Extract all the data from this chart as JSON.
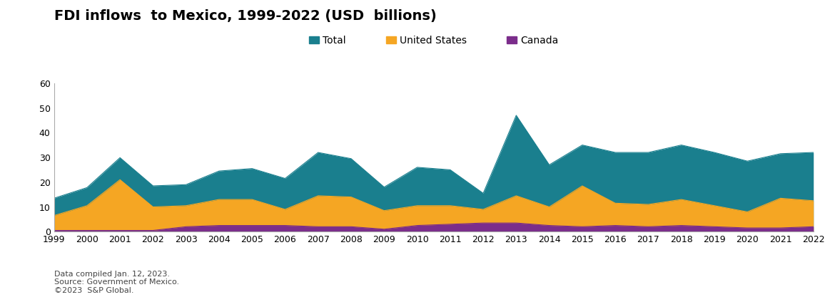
{
  "title": "FDI inflows  to Mexico, 1999-2022 (USD  billions)",
  "years": [
    1999,
    2000,
    2001,
    2002,
    2003,
    2004,
    2005,
    2006,
    2007,
    2008,
    2009,
    2010,
    2011,
    2012,
    2013,
    2014,
    2015,
    2016,
    2017,
    2018,
    2019,
    2020,
    2021,
    2022
  ],
  "total": [
    13.5,
    17.8,
    29.9,
    18.5,
    19.0,
    24.5,
    25.5,
    21.5,
    32.0,
    29.5,
    18.0,
    26.0,
    25.0,
    15.5,
    47.0,
    27.0,
    35.0,
    32.0,
    32.0,
    35.0,
    32.0,
    28.5,
    31.5,
    32.0
  ],
  "united_states": [
    6.5,
    10.5,
    21.0,
    10.0,
    10.5,
    13.0,
    13.0,
    9.0,
    14.5,
    14.0,
    8.5,
    10.5,
    10.5,
    9.0,
    14.5,
    10.0,
    18.5,
    11.5,
    11.0,
    13.0,
    10.5,
    8.0,
    13.5,
    12.5
  ],
  "canada": [
    0.5,
    0.5,
    0.5,
    0.5,
    2.0,
    2.5,
    2.5,
    2.5,
    2.0,
    2.0,
    1.0,
    2.5,
    3.0,
    3.5,
    3.5,
    2.5,
    2.0,
    2.5,
    2.0,
    2.5,
    2.0,
    1.5,
    1.5,
    2.0
  ],
  "colors": {
    "total": "#1a7f8e",
    "united_states": "#f5a623",
    "canada": "#7b2d8b"
  },
  "legend_labels": [
    "Total",
    "United States",
    "Canada"
  ],
  "ylim": [
    0,
    60
  ],
  "yticks": [
    0,
    10,
    20,
    30,
    40,
    50,
    60
  ],
  "footnote_lines": [
    "Data compiled Jan. 12, 2023.",
    "Source: Government of Mexico.",
    "©2023  S&P Global."
  ],
  "background_color": "#ffffff",
  "title_fontsize": 14,
  "legend_fontsize": 10,
  "tick_fontsize": 9,
  "footnote_fontsize": 8
}
